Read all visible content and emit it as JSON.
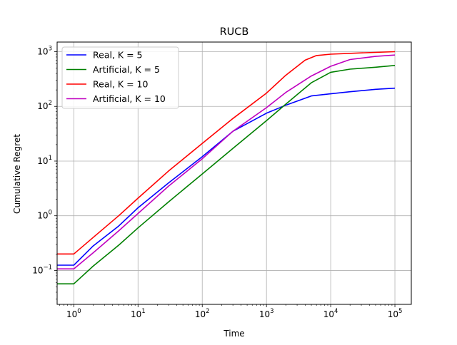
{
  "chart_data": {
    "type": "line",
    "title": "RUCB",
    "xlabel": "Time",
    "ylabel": "Cumulative Regret",
    "xscale": "log",
    "yscale": "log",
    "xlim": [
      0.55,
      180000
    ],
    "ylim": [
      0.024,
      1500
    ],
    "grid": true,
    "legend_position": "top-left",
    "x_ticks": [
      {
        "base": "10",
        "exp": "0",
        "value": 1
      },
      {
        "base": "10",
        "exp": "1",
        "value": 10
      },
      {
        "base": "10",
        "exp": "2",
        "value": 100
      },
      {
        "base": "10",
        "exp": "3",
        "value": 1000
      },
      {
        "base": "10",
        "exp": "4",
        "value": 10000
      },
      {
        "base": "10",
        "exp": "5",
        "value": 100000
      }
    ],
    "y_ticks": [
      {
        "base": "10",
        "exp": "−1",
        "value": 0.1
      },
      {
        "base": "10",
        "exp": "0",
        "value": 1
      },
      {
        "base": "10",
        "exp": "1",
        "value": 10
      },
      {
        "base": "10",
        "exp": "2",
        "value": 100
      },
      {
        "base": "10",
        "exp": "3",
        "value": 1000
      }
    ],
    "series": [
      {
        "name": "Real, K = 5",
        "color": "#0000ff",
        "points": [
          [
            0.55,
            0.125
          ],
          [
            1,
            0.125
          ],
          [
            2,
            0.28
          ],
          [
            5,
            0.65
          ],
          [
            10,
            1.4
          ],
          [
            30,
            4.0
          ],
          [
            100,
            12
          ],
          [
            300,
            35
          ],
          [
            1000,
            75
          ],
          [
            2000,
            105
          ],
          [
            5000,
            155
          ],
          [
            10000,
            170
          ],
          [
            20000,
            185
          ],
          [
            50000,
            205
          ],
          [
            100000,
            215
          ]
        ]
      },
      {
        "name": "Artificial, K = 5",
        "color": "#008000",
        "points": [
          [
            0.55,
            0.057
          ],
          [
            1,
            0.057
          ],
          [
            2,
            0.12
          ],
          [
            5,
            0.29
          ],
          [
            10,
            0.6
          ],
          [
            30,
            1.8
          ],
          [
            100,
            5.8
          ],
          [
            300,
            17
          ],
          [
            1000,
            55
          ],
          [
            2000,
            110
          ],
          [
            5000,
            270
          ],
          [
            10000,
            420
          ],
          [
            20000,
            480
          ],
          [
            50000,
            520
          ],
          [
            100000,
            560
          ]
        ]
      },
      {
        "name": "Real, K = 10",
        "color": "#ff0000",
        "points": [
          [
            0.55,
            0.2
          ],
          [
            1,
            0.2
          ],
          [
            2,
            0.4
          ],
          [
            5,
            1.0
          ],
          [
            10,
            2.1
          ],
          [
            30,
            6.6
          ],
          [
            100,
            21
          ],
          [
            300,
            60
          ],
          [
            1000,
            175
          ],
          [
            2000,
            370
          ],
          [
            4000,
            700
          ],
          [
            6000,
            850
          ],
          [
            10000,
            900
          ],
          [
            30000,
            950
          ],
          [
            100000,
            1000
          ]
        ]
      },
      {
        "name": "Artificial, K = 10",
        "color": "#bf00bf",
        "points": [
          [
            0.55,
            0.107
          ],
          [
            1,
            0.107
          ],
          [
            2,
            0.21
          ],
          [
            5,
            0.53
          ],
          [
            10,
            1.1
          ],
          [
            30,
            3.5
          ],
          [
            100,
            11
          ],
          [
            300,
            35
          ],
          [
            1000,
            95
          ],
          [
            2000,
            180
          ],
          [
            5000,
            360
          ],
          [
            10000,
            540
          ],
          [
            20000,
            720
          ],
          [
            50000,
            820
          ],
          [
            100000,
            870
          ]
        ]
      }
    ]
  }
}
